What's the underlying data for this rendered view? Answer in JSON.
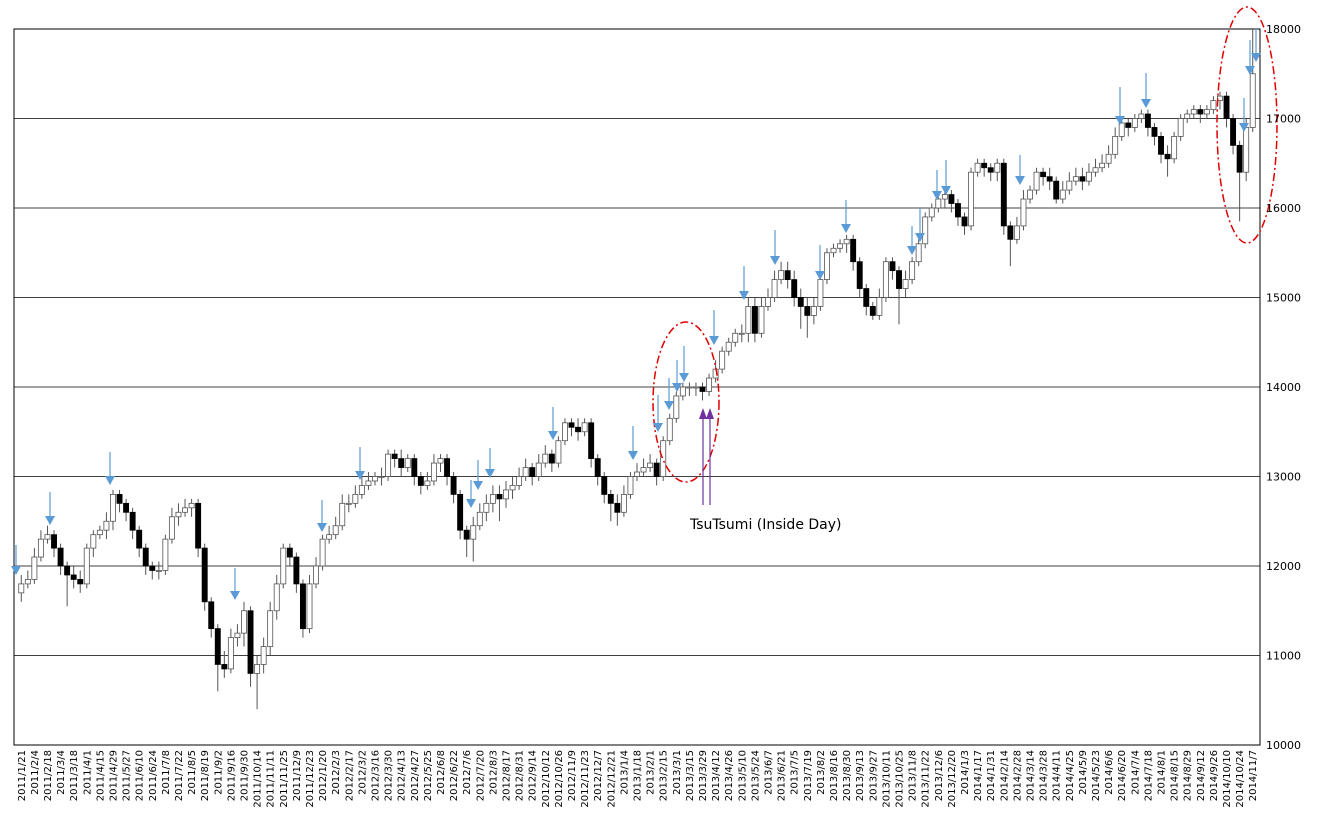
{
  "chart_data": {
    "type": "candlestick",
    "categories": [
      "2011/1/21",
      null,
      "2011/2/4",
      null,
      "2011/2/18",
      null,
      "2011/3/4",
      null,
      "2011/3/18",
      null,
      "2011/4/1",
      null,
      "2011/4/15",
      null,
      "2011/4/29",
      null,
      "2011/5/27",
      null,
      "2011/6/10",
      null,
      "2011/6/24",
      null,
      "2011/7/8",
      null,
      "2011/7/22",
      null,
      "2011/8/5",
      null,
      "2011/8/19",
      null,
      "2011/9/2",
      null,
      "2011/9/16",
      null,
      "2011/9/30",
      null,
      "2011/10/14",
      null,
      "2011/11/11",
      null,
      "2011/11/25",
      null,
      "2011/12/9",
      null,
      "2011/12/23",
      null,
      "2012/1/20",
      null,
      "2012/2/3",
      null,
      "2012/2/17",
      null,
      "2012/3/2",
      null,
      "2012/3/16",
      null,
      "2012/3/30",
      null,
      "2012/4/13",
      null,
      "2012/4/27",
      null,
      "2012/5/25",
      null,
      "2012/6/8",
      null,
      "2012/6/22",
      null,
      "2012/7/6",
      null,
      "2012/7/20",
      null,
      "2012/8/3",
      null,
      "2012/8/17",
      null,
      "2012/8/31",
      null,
      "2012/9/14",
      null,
      "2012/10/12",
      null,
      "2012/10/26",
      null,
      "2012/11/9",
      null,
      "2012/11/23",
      null,
      "2012/12/7",
      null,
      "2012/12/21",
      null,
      "2013/1/4",
      null,
      "2013/1/18",
      null,
      "2013/2/1",
      null,
      "2013/2/15",
      null,
      "2013/3/1",
      null,
      "2013/3/15",
      null,
      "2013/3/29",
      null,
      "2013/4/12",
      null,
      "2013/4/26",
      null,
      "2013/5/10",
      null,
      "2013/5/24",
      null,
      "2013/6/7",
      null,
      "2013/6/21",
      null,
      "2013/7/5",
      null,
      "2013/7/19",
      null,
      "2013/8/2",
      null,
      "2013/8/16",
      null,
      "2013/8/30",
      null,
      "2013/9/13",
      null,
      "2013/9/27",
      null,
      "2013/10/11",
      null,
      "2013/10/25",
      null,
      "2013/11/8",
      null,
      "2013/11/22",
      null,
      "2013/12/6",
      null,
      "2013/12/20",
      null,
      "2014/1/3",
      null,
      "2014/1/17",
      null,
      "2014/1/31",
      null,
      "2014/2/14",
      null,
      "2014/2/28",
      null,
      "2014/3/14",
      null,
      "2014/3/28",
      null,
      "2014/4/11",
      null,
      "2014/4/25",
      null,
      "2014/5/9",
      null,
      "2014/5/23",
      null,
      "2014/6/6",
      null,
      "2014/6/20",
      null,
      "2014/7/4",
      null,
      "2014/7/18",
      null,
      "2014/8/1",
      null,
      "2014/8/15",
      null,
      "2014/8/29",
      null,
      "2014/9/12",
      null,
      "2014/9/26",
      null,
      "2014/10/10",
      null,
      "2014/10/24",
      null,
      "2014/11/7"
    ],
    "open": [
      11700,
      11800,
      11850,
      12100,
      12300,
      12350,
      12200,
      12000,
      11900,
      11850,
      11800,
      12200,
      12350,
      12400,
      12500,
      12800,
      12700,
      12600,
      12400,
      12200,
      12000,
      11950,
      11950,
      12300,
      12550,
      12600,
      12650,
      12700,
      12200,
      11600,
      11300,
      10900,
      10850,
      11200,
      11250,
      11500,
      10800,
      10900,
      11100,
      11500,
      11800,
      12200,
      12100,
      11800,
      11300,
      11800,
      12000,
      12300,
      12350,
      12450,
      12700,
      12700,
      12800,
      12900,
      12950,
      13000,
      13000,
      13250,
      13200,
      13100,
      13200,
      13000,
      12900,
      12950,
      13150,
      13200,
      13000,
      12800,
      12400,
      12300,
      12450,
      12600,
      12700,
      12800,
      12750,
      12850,
      12900,
      13000,
      13100,
      13000,
      13150,
      13250,
      13150,
      13400,
      13600,
      13550,
      13500,
      13600,
      13200,
      13000,
      12800,
      12700,
      12600,
      12800,
      13000,
      13050,
      13100,
      13150,
      13000,
      13400,
      13650,
      13900,
      14000,
      14000,
      14000,
      13950,
      14100,
      14200,
      14400,
      14500,
      14600,
      14600,
      14900,
      14600,
      14900,
      15000,
      15200,
      15300,
      15200,
      15000,
      14900,
      14800,
      14900,
      15200,
      15500,
      15550,
      15600,
      15650,
      15400,
      15100,
      14900,
      14800,
      15000,
      15400,
      15300,
      15100,
      15200,
      15400,
      15600,
      15900,
      16000,
      16100,
      16150,
      16050,
      15900,
      15800,
      16400,
      16500,
      16450,
      16400,
      16500,
      15800,
      15650,
      15800,
      16100,
      16200,
      16400,
      16350,
      16300,
      16100,
      16200,
      16300,
      16350,
      16300,
      16400,
      16450,
      16500,
      16600,
      16800,
      16950,
      16900,
      17000,
      17050,
      16900,
      16800,
      16600,
      16550,
      16800,
      17000,
      17050,
      17100,
      17050,
      17100,
      17200,
      17250,
      17000,
      16700,
      16400,
      16900
    ],
    "high": [
      11900,
      11950,
      12200,
      12400,
      12450,
      12400,
      12250,
      12050,
      12000,
      11950,
      12250,
      12400,
      12450,
      12600,
      12850,
      12850,
      12750,
      12650,
      12450,
      12250,
      12050,
      12050,
      12350,
      12650,
      12700,
      12750,
      12750,
      12750,
      12250,
      11650,
      11350,
      11050,
      11300,
      11350,
      11600,
      11550,
      11000,
      11200,
      11600,
      11900,
      12250,
      12250,
      12150,
      11850,
      11900,
      12100,
      12350,
      12450,
      12550,
      12800,
      12800,
      12900,
      13000,
      13050,
      13050,
      13100,
      13300,
      13300,
      13300,
      13250,
      13250,
      13050,
      13050,
      13250,
      13250,
      13250,
      13050,
      12850,
      12450,
      12550,
      12700,
      12800,
      12900,
      12900,
      12950,
      13000,
      13100,
      13200,
      13150,
      13250,
      13350,
      13300,
      13450,
      13650,
      13650,
      13650,
      13650,
      13650,
      13250,
      13050,
      12850,
      12800,
      12900,
      13050,
      13150,
      13200,
      13250,
      13200,
      13450,
      13700,
      13950,
      14050,
      14050,
      14050,
      14050,
      14150,
      14300,
      14450,
      14550,
      14650,
      14700,
      15000,
      15000,
      15000,
      15100,
      15300,
      15400,
      15400,
      15300,
      15100,
      15000,
      15000,
      15300,
      15550,
      15600,
      15650,
      15700,
      15700,
      15450,
      15150,
      14950,
      15100,
      15450,
      15450,
      15350,
      15300,
      15450,
      15650,
      15950,
      16050,
      16150,
      16200,
      16200,
      16100,
      15950,
      16450,
      16550,
      16550,
      16500,
      16550,
      16550,
      15850,
      15900,
      16200,
      16250,
      16450,
      16450,
      16450,
      16350,
      16300,
      16400,
      16450,
      16450,
      16500,
      16550,
      16600,
      16700,
      16900,
      17000,
      17000,
      17050,
      17100,
      17100,
      16950,
      16850,
      16700,
      16850,
      17050,
      17100,
      17150,
      17150,
      17150,
      17250,
      17300,
      17300,
      17050,
      16750,
      17000,
      18000
    ],
    "low": [
      11600,
      11750,
      11800,
      12050,
      12250,
      12100,
      11900,
      11550,
      11750,
      11700,
      11750,
      12100,
      12300,
      12300,
      12400,
      12600,
      12500,
      12300,
      12100,
      11900,
      11850,
      11850,
      11900,
      12250,
      12450,
      12550,
      12550,
      12100,
      11500,
      11200,
      10600,
      10750,
      10800,
      11100,
      11100,
      10650,
      10400,
      10800,
      11000,
      11400,
      11750,
      12000,
      11700,
      11200,
      11250,
      11750,
      11950,
      12250,
      12300,
      12400,
      12600,
      12650,
      12750,
      12850,
      12900,
      12900,
      12950,
      13100,
      13000,
      13050,
      12900,
      12800,
      12850,
      12900,
      13050,
      12900,
      12700,
      12300,
      12100,
      12050,
      12400,
      12500,
      12600,
      12500,
      12650,
      12750,
      12850,
      12950,
      12900,
      12950,
      13100,
      13050,
      13100,
      13350,
      13450,
      13400,
      13450,
      13100,
      12900,
      12700,
      12500,
      12450,
      12550,
      12750,
      12950,
      13000,
      13050,
      12900,
      12950,
      13350,
      13600,
      13850,
      13900,
      13900,
      13850,
      13900,
      14050,
      14150,
      14350,
      14450,
      14500,
      14500,
      14500,
      14550,
      14850,
      14950,
      15150,
      15100,
      14900,
      14650,
      14550,
      14700,
      14850,
      15150,
      15450,
      15500,
      15500,
      15300,
      15000,
      14800,
      14750,
      14750,
      14950,
      15200,
      14700,
      15000,
      15150,
      15350,
      15550,
      15850,
      15950,
      16000,
      15950,
      15800,
      15700,
      15750,
      16350,
      16350,
      16300,
      16300,
      15700,
      15350,
      15600,
      15750,
      16050,
      16150,
      16250,
      16200,
      16050,
      16050,
      16150,
      16250,
      16200,
      16250,
      16350,
      16400,
      16450,
      16550,
      16750,
      16800,
      16850,
      16950,
      16800,
      16700,
      16500,
      16350,
      16500,
      16750,
      16950,
      17000,
      16950,
      17000,
      17050,
      17100,
      16900,
      16600,
      15850,
      16300,
      16850
    ],
    "close": [
      11800,
      11850,
      12100,
      12300,
      12350,
      12200,
      12000,
      11900,
      11850,
      11800,
      12200,
      12350,
      12400,
      12500,
      12800,
      12700,
      12600,
      12400,
      12200,
      12000,
      11950,
      11950,
      12300,
      12550,
      12600,
      12650,
      12700,
      12200,
      11600,
      11300,
      10900,
      10850,
      11200,
      11250,
      11500,
      10800,
      10900,
      11100,
      11500,
      11800,
      12200,
      12100,
      11800,
      11300,
      11800,
      12000,
      12300,
      12350,
      12450,
      12700,
      12700,
      12800,
      12900,
      12950,
      13000,
      13000,
      13250,
      13200,
      13100,
      13200,
      13000,
      12900,
      12950,
      13150,
      13200,
      13000,
      12800,
      12400,
      12300,
      12450,
      12600,
      12700,
      12800,
      12750,
      12850,
      12900,
      13000,
      13100,
      13000,
      13150,
      13250,
      13150,
      13400,
      13600,
      13550,
      13500,
      13600,
      13200,
      13000,
      12800,
      12700,
      12600,
      12800,
      13000,
      13050,
      13100,
      13150,
      13000,
      13400,
      13650,
      13900,
      14000,
      14000,
      14000,
      13950,
      14100,
      14200,
      14400,
      14500,
      14600,
      14600,
      14900,
      14600,
      14900,
      15000,
      15200,
      15300,
      15200,
      15000,
      14900,
      14800,
      14900,
      15200,
      15500,
      15550,
      15600,
      15650,
      15400,
      15100,
      14900,
      14800,
      15000,
      15400,
      15300,
      15100,
      15200,
      15400,
      15600,
      15900,
      16000,
      16100,
      16150,
      16050,
      15900,
      15800,
      16400,
      16500,
      16450,
      16400,
      16500,
      15800,
      15650,
      15800,
      16100,
      16200,
      16400,
      16350,
      16300,
      16100,
      16200,
      16300,
      16350,
      16300,
      16400,
      16450,
      16500,
      16600,
      16800,
      16950,
      16900,
      17000,
      17050,
      16900,
      16800,
      16600,
      16550,
      16800,
      17000,
      17050,
      17100,
      17050,
      17100,
      17200,
      17250,
      17000,
      16700,
      16400,
      16900,
      17500
    ],
    "ylim": [
      10000,
      18000
    ],
    "yticks": [
      10000,
      11000,
      12000,
      13000,
      14000,
      15000,
      16000,
      17000,
      18000
    ],
    "grid": true,
    "up_color": "#ffffff",
    "down_color": "#000000",
    "wick_color": "#555555",
    "annotation": "TsuTsumi (Inside Day)",
    "annotation_color": "#7030a0"
  }
}
